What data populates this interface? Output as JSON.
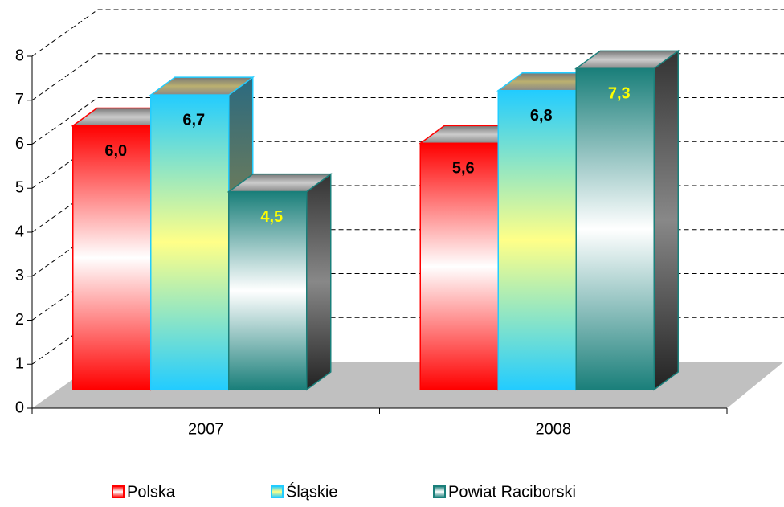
{
  "chart_data": {
    "type": "bar3d",
    "categories": [
      "2007",
      "2008"
    ],
    "series": [
      {
        "name": "Polska",
        "color": "#ff0000",
        "mid_color": "#ffffff",
        "label_color": "#000000",
        "values": [
          6.0,
          5.6
        ],
        "value_labels": [
          "6,0",
          "5,6"
        ]
      },
      {
        "name": "Śląskie",
        "color": "#22ccff",
        "mid_color": "#ffff88",
        "label_color": "#000000",
        "values": [
          6.7,
          6.8
        ],
        "value_labels": [
          "6,7",
          "6,8"
        ]
      },
      {
        "name": "Powiat Raciborski",
        "color": "#1a7f7a",
        "mid_color": "#ffffff",
        "label_color": "#ffff00",
        "values": [
          4.5,
          7.3
        ],
        "value_labels": [
          "4,5",
          "7,3"
        ]
      }
    ],
    "ylim": [
      0,
      8
    ],
    "yticks": [
      0,
      1,
      2,
      3,
      4,
      5,
      6,
      7,
      8
    ],
    "grid": true,
    "legend": "bottom"
  }
}
